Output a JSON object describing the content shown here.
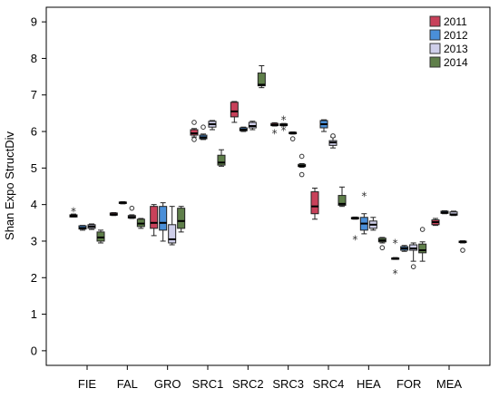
{
  "chart_data": {
    "type": "boxplot",
    "ylabel": "Shan Expo StructDiv",
    "xlabel": "",
    "ylim": [
      -0.4,
      9.4
    ],
    "yticks": [
      0,
      1,
      2,
      3,
      4,
      5,
      6,
      7,
      8,
      9
    ],
    "categories": [
      "FIE",
      "FAL",
      "GRO",
      "SRC1",
      "SRC2",
      "SRC3",
      "SRC4",
      "HEA",
      "FOR",
      "MEA"
    ],
    "legend_position": "top-right",
    "series": [
      {
        "name": "2011",
        "color": "#c8415a",
        "boxes": [
          {
            "min": 3.66,
            "q1": 3.66,
            "median": 3.69,
            "q3": 3.72,
            "max": 3.74,
            "outliers": [],
            "extremes": [
              3.85
            ]
          },
          {
            "min": 3.7,
            "q1": 3.71,
            "median": 3.73,
            "q3": 3.77,
            "max": 3.78,
            "outliers": [],
            "extremes": []
          },
          {
            "min": 3.15,
            "q1": 3.35,
            "median": 3.5,
            "q3": 3.95,
            "max": 4.0,
            "outliers": [],
            "extremes": []
          },
          {
            "min": 5.85,
            "q1": 5.9,
            "median": 5.95,
            "q3": 6.05,
            "max": 6.08,
            "outliers": [
              5.78,
              6.25
            ],
            "extremes": []
          },
          {
            "min": 6.25,
            "q1": 6.4,
            "median": 6.55,
            "q3": 6.8,
            "max": 6.82,
            "outliers": [],
            "extremes": []
          },
          {
            "min": 6.15,
            "q1": 6.16,
            "median": 6.18,
            "q3": 6.22,
            "max": 6.24,
            "outliers": [],
            "extremes": [
              5.99
            ]
          },
          {
            "min": 3.6,
            "q1": 3.75,
            "median": 3.95,
            "q3": 4.35,
            "max": 4.45,
            "outliers": [],
            "extremes": []
          },
          {
            "min": 3.6,
            "q1": 3.61,
            "median": 3.62,
            "q3": 3.65,
            "max": 3.66,
            "outliers": [],
            "extremes": [
              3.08
            ]
          },
          {
            "min": 2.5,
            "q1": 2.51,
            "median": 2.52,
            "q3": 2.54,
            "max": 2.55,
            "outliers": [],
            "extremes": [
              2.15,
              2.99
            ]
          },
          {
            "min": 3.43,
            "q1": 3.45,
            "median": 3.52,
            "q3": 3.58,
            "max": 3.62,
            "outliers": [],
            "extremes": []
          }
        ]
      },
      {
        "name": "2012",
        "color": "#4a8fd8",
        "boxes": [
          {
            "min": 3.3,
            "q1": 3.33,
            "median": 3.36,
            "q3": 3.42,
            "max": 3.43,
            "outliers": [],
            "extremes": []
          },
          {
            "min": 4.02,
            "q1": 4.03,
            "median": 4.05,
            "q3": 4.07,
            "max": 4.08,
            "outliers": [],
            "extremes": []
          },
          {
            "min": 3.0,
            "q1": 3.3,
            "median": 3.5,
            "q3": 3.95,
            "max": 4.05,
            "outliers": [],
            "extremes": []
          },
          {
            "min": 5.78,
            "q1": 5.8,
            "median": 5.84,
            "q3": 5.9,
            "max": 5.93,
            "outliers": [
              6.12
            ],
            "extremes": []
          },
          {
            "min": 6.0,
            "q1": 6.02,
            "median": 6.05,
            "q3": 6.1,
            "max": 6.12,
            "outliers": [],
            "extremes": []
          },
          {
            "min": 6.15,
            "q1": 6.16,
            "median": 6.18,
            "q3": 6.21,
            "max": 6.22,
            "outliers": [],
            "extremes": [
              6.36,
              6.08
            ]
          },
          {
            "min": 6.0,
            "q1": 6.1,
            "median": 6.2,
            "q3": 6.3,
            "max": 6.32,
            "outliers": [],
            "extremes": []
          },
          {
            "min": 3.2,
            "q1": 3.3,
            "median": 3.48,
            "q3": 3.65,
            "max": 3.75,
            "outliers": [],
            "extremes": [
              4.28
            ]
          },
          {
            "min": 2.72,
            "q1": 2.75,
            "median": 2.8,
            "q3": 2.85,
            "max": 2.88,
            "outliers": [],
            "extremes": []
          },
          {
            "min": 3.75,
            "q1": 3.76,
            "median": 3.78,
            "q3": 3.82,
            "max": 3.83,
            "outliers": [],
            "extremes": []
          }
        ]
      },
      {
        "name": "2013",
        "color": "#cfcfea",
        "boxes": [
          {
            "min": 3.32,
            "q1": 3.35,
            "median": 3.4,
            "q3": 3.45,
            "max": 3.47,
            "outliers": [],
            "extremes": []
          },
          {
            "min": 3.62,
            "q1": 3.63,
            "median": 3.66,
            "q3": 3.7,
            "max": 3.72,
            "outliers": [
              3.9
            ],
            "extremes": []
          },
          {
            "min": 2.9,
            "q1": 2.95,
            "median": 3.05,
            "q3": 3.45,
            "max": 3.95,
            "outliers": [],
            "extremes": []
          },
          {
            "min": 6.05,
            "q1": 6.12,
            "median": 6.2,
            "q3": 6.28,
            "max": 6.3,
            "outliers": [],
            "extremes": []
          },
          {
            "min": 6.05,
            "q1": 6.1,
            "median": 6.15,
            "q3": 6.25,
            "max": 6.28,
            "outliers": [],
            "extremes": []
          },
          {
            "min": 5.93,
            "q1": 5.94,
            "median": 5.95,
            "q3": 5.98,
            "max": 5.99,
            "outliers": [
              5.8
            ],
            "extremes": []
          },
          {
            "min": 5.55,
            "q1": 5.62,
            "median": 5.7,
            "q3": 5.75,
            "max": 5.85,
            "outliers": [
              5.88
            ],
            "extremes": []
          },
          {
            "min": 3.3,
            "q1": 3.35,
            "median": 3.45,
            "q3": 3.55,
            "max": 3.65,
            "outliers": [],
            "extremes": []
          },
          {
            "min": 2.45,
            "q1": 2.75,
            "median": 2.8,
            "q3": 2.9,
            "max": 2.95,
            "outliers": [
              2.3
            ],
            "extremes": []
          },
          {
            "min": 3.7,
            "q1": 3.71,
            "median": 3.73,
            "q3": 3.8,
            "max": 3.82,
            "outliers": [],
            "extremes": []
          }
        ]
      },
      {
        "name": "2014",
        "color": "#5f7f4a",
        "boxes": [
          {
            "min": 2.95,
            "q1": 3.0,
            "median": 3.1,
            "q3": 3.25,
            "max": 3.3,
            "outliers": [],
            "extremes": []
          },
          {
            "min": 3.35,
            "q1": 3.4,
            "median": 3.48,
            "q3": 3.6,
            "max": 3.62,
            "outliers": [],
            "extremes": []
          },
          {
            "min": 3.25,
            "q1": 3.35,
            "median": 3.55,
            "q3": 3.9,
            "max": 3.95,
            "outliers": [],
            "extremes": []
          },
          {
            "min": 5.05,
            "q1": 5.08,
            "median": 5.15,
            "q3": 5.35,
            "max": 5.5,
            "outliers": [],
            "extremes": []
          },
          {
            "min": 7.2,
            "q1": 7.25,
            "median": 7.28,
            "q3": 7.6,
            "max": 7.8,
            "outliers": [],
            "extremes": []
          },
          {
            "min": 5.02,
            "q1": 5.04,
            "median": 5.06,
            "q3": 5.1,
            "max": 5.12,
            "outliers": [
              5.32,
              4.82
            ],
            "extremes": []
          },
          {
            "min": 3.95,
            "q1": 3.98,
            "median": 4.02,
            "q3": 4.25,
            "max": 4.48,
            "outliers": [],
            "extremes": []
          },
          {
            "min": 2.95,
            "q1": 2.98,
            "median": 3.02,
            "q3": 3.08,
            "max": 3.1,
            "outliers": [
              2.82
            ],
            "extremes": []
          },
          {
            "min": 2.45,
            "q1": 2.68,
            "median": 2.75,
            "q3": 2.92,
            "max": 2.98,
            "outliers": [
              3.32
            ],
            "extremes": []
          },
          {
            "min": 2.95,
            "q1": 2.96,
            "median": 2.98,
            "q3": 3.0,
            "max": 3.01,
            "outliers": [
              2.75
            ],
            "extremes": []
          }
        ]
      }
    ]
  }
}
